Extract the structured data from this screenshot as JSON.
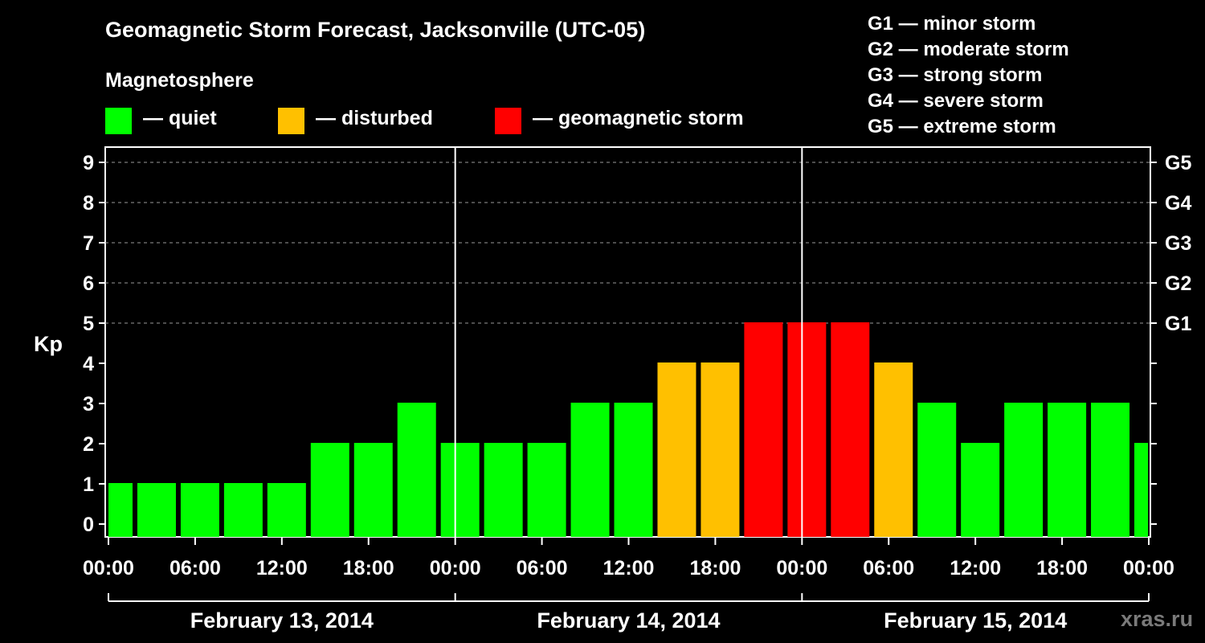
{
  "header": {
    "title": "Geomagnetic Storm Forecast, Jacksonville (UTC-05)",
    "subtitle": "Magnetosphere"
  },
  "legend": {
    "items": [
      {
        "label": "— quiet",
        "color": "#00ff00"
      },
      {
        "label": "— disturbed",
        "color": "#ffc000"
      },
      {
        "label": "— geomagnetic storm",
        "color": "#ff0000"
      }
    ]
  },
  "g_scale": [
    "G1 — minor storm",
    "G2 — moderate storm",
    "G3 — strong storm",
    "G4 — severe storm",
    "G5 — extreme storm"
  ],
  "watermark": "xras.ru",
  "chart_data": {
    "type": "bar",
    "ylabel": "Kp",
    "xlabel": "",
    "ylim": [
      0,
      9
    ],
    "y_ticks": [
      0,
      1,
      2,
      3,
      4,
      5,
      6,
      7,
      8,
      9
    ],
    "right_axis_labels": [
      {
        "kp": 5,
        "label": "G1"
      },
      {
        "kp": 6,
        "label": "G2"
      },
      {
        "kp": 7,
        "label": "G3"
      },
      {
        "kp": 8,
        "label": "G4"
      },
      {
        "kp": 9,
        "label": "G5"
      }
    ],
    "x_tick_labels": [
      "00:00",
      "06:00",
      "12:00",
      "18:00",
      "00:00",
      "06:00",
      "12:00",
      "18:00",
      "00:00",
      "06:00",
      "12:00",
      "18:00",
      "00:00"
    ],
    "days": [
      "February 13, 2014",
      "February 14, 2014",
      "February 15, 2014"
    ],
    "interval_hours": 3,
    "bar_start_hours": [
      -1,
      2,
      5,
      8,
      11,
      14,
      17,
      20,
      23,
      26,
      29,
      32,
      35,
      38,
      41,
      44,
      47,
      50,
      53,
      56,
      59,
      62,
      65,
      68,
      71
    ],
    "values": [
      1,
      1,
      1,
      1,
      1,
      2,
      2,
      3,
      2,
      2,
      2,
      3,
      3,
      4,
      4,
      5,
      5,
      5,
      4,
      3,
      2,
      3,
      3,
      3,
      2
    ],
    "colors": {
      "quiet": "#00ff00",
      "disturbed": "#ffc000",
      "storm": "#ff0000"
    },
    "grid": "dashed horizontal at Kp 5 to 9"
  }
}
